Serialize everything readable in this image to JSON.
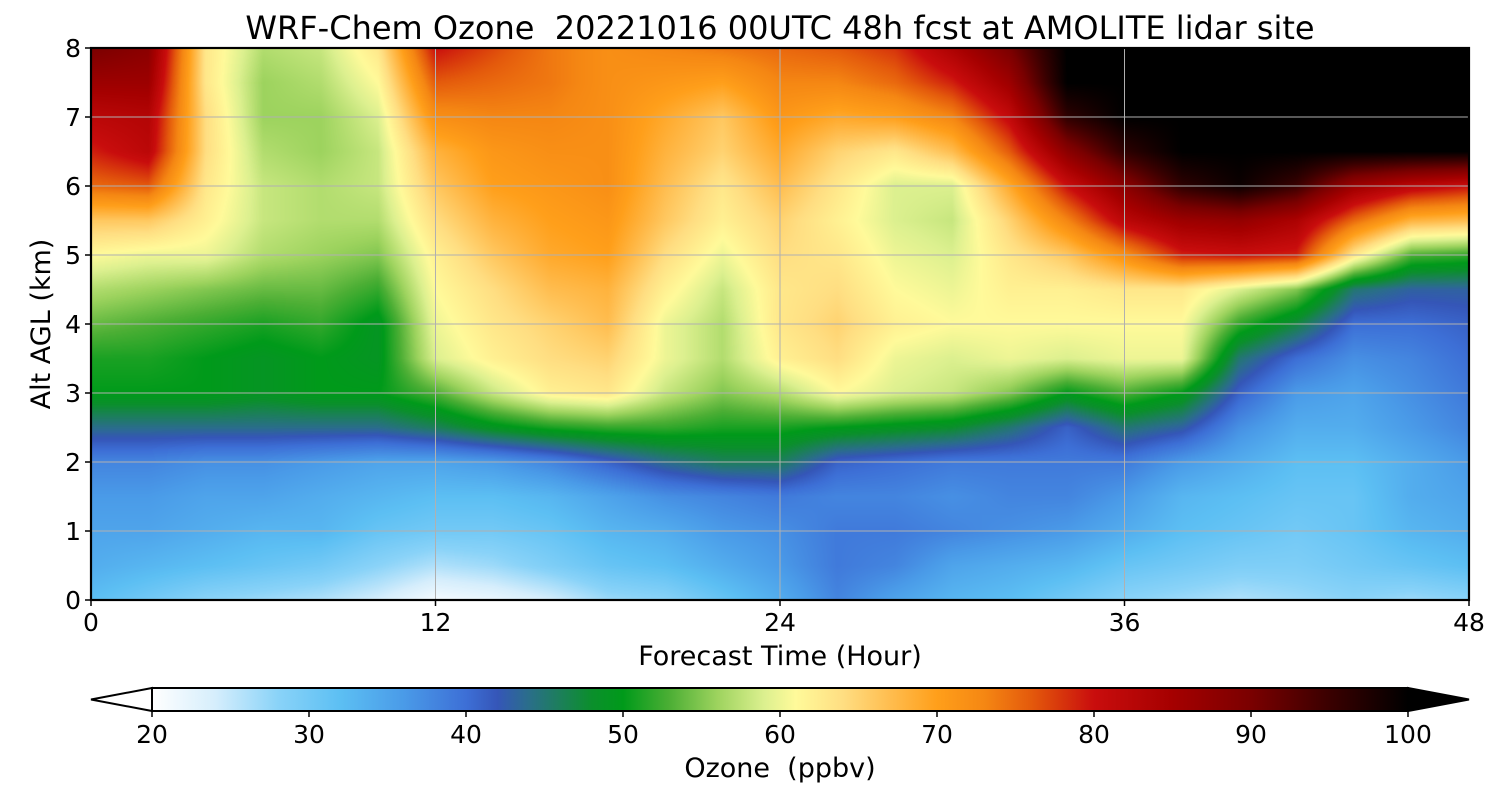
{
  "chart_data": {
    "type": "heatmap",
    "title": "WRF-Chem Ozone  20221016 00UTC 48h fcst at AMOLITE lidar site",
    "xlabel": "Forecast Time (Hour)",
    "ylabel": "Alt AGL (km)",
    "xlim": [
      0,
      48
    ],
    "ylim": [
      0,
      8
    ],
    "x_ticks": [
      "0",
      "12",
      "24",
      "36",
      "48"
    ],
    "y_ticks": [
      "0",
      "1",
      "2",
      "3",
      "4",
      "5",
      "6",
      "7",
      "8"
    ],
    "grid": true,
    "x": [
      0,
      2,
      4,
      6,
      8,
      10,
      12,
      14,
      16,
      18,
      20,
      22,
      24,
      26,
      28,
      30,
      32,
      34,
      36,
      38,
      40,
      42,
      44,
      46,
      48
    ],
    "y": [
      0,
      0.5,
      1,
      1.5,
      2,
      2.5,
      3,
      3.5,
      4,
      4.5,
      5,
      5.5,
      6,
      6.5,
      7,
      7.5,
      8
    ],
    "z": [
      [
        32,
        30,
        28,
        27,
        26,
        24,
        21,
        22,
        24,
        27,
        28,
        31,
        34,
        38,
        35,
        33,
        32,
        30,
        28,
        27,
        26,
        27,
        28,
        27,
        28
      ],
      [
        34,
        33,
        32,
        31,
        30,
        28,
        26,
        27,
        29,
        31,
        32,
        34,
        36,
        39,
        38,
        35,
        34,
        33,
        31,
        30,
        29,
        29,
        30,
        31,
        32
      ],
      [
        35,
        35,
        34,
        33,
        33,
        31,
        30,
        30,
        31,
        33,
        34,
        36,
        37,
        39,
        39,
        38,
        37,
        36,
        34,
        32,
        31,
        30,
        31,
        33,
        34
      ],
      [
        36,
        36,
        35,
        35,
        34,
        33,
        32,
        32,
        33,
        35,
        37,
        38,
        39,
        38,
        38,
        37,
        38,
        38,
        36,
        33,
        32,
        31,
        31,
        34,
        35
      ],
      [
        38,
        38,
        37,
        37,
        36,
        35,
        35,
        36,
        38,
        41,
        44,
        46,
        46,
        41,
        40,
        39,
        39,
        39,
        39,
        36,
        34,
        32,
        32,
        34,
        36
      ],
      [
        44,
        44,
        44,
        44,
        44,
        44,
        46,
        49,
        51,
        52,
        52,
        51,
        51,
        50,
        49,
        48,
        45,
        41,
        45,
        43,
        37,
        34,
        34,
        36,
        38
      ],
      [
        50,
        50,
        50,
        49,
        50,
        50,
        53,
        58,
        62,
        63,
        58,
        55,
        57,
        61,
        59,
        58,
        55,
        50,
        53,
        50,
        41,
        36,
        35,
        37,
        39
      ],
      [
        51,
        51,
        50,
        49,
        50,
        49,
        59,
        62,
        64,
        65,
        60,
        57,
        62,
        64,
        60,
        59,
        60,
        59,
        60,
        60,
        45,
        40,
        37,
        38,
        40
      ],
      [
        54,
        53,
        52,
        51,
        52,
        49,
        60,
        63,
        65,
        67,
        60,
        57,
        63,
        65,
        62,
        61,
        61,
        61,
        61,
        61,
        52,
        47,
        40,
        40,
        41
      ],
      [
        57,
        56,
        55,
        54,
        54,
        52,
        61,
        64,
        67,
        68,
        62,
        58,
        63,
        64,
        61,
        60,
        62,
        62,
        63,
        63,
        59,
        55,
        45,
        43,
        43
      ],
      [
        61,
        60,
        60,
        57,
        56,
        55,
        62,
        66,
        69,
        70,
        64,
        60,
        64,
        63,
        60,
        59,
        63,
        66,
        72,
        79,
        80,
        79,
        63,
        53,
        52
      ],
      [
        66,
        66,
        62,
        58,
        57,
        57,
        64,
        68,
        70,
        71,
        66,
        62,
        65,
        62,
        59,
        58,
        65,
        73,
        82,
        86,
        87,
        84,
        75,
        68,
        67
      ],
      [
        75,
        76,
        63,
        58,
        57,
        58,
        66,
        70,
        71,
        72,
        67,
        63,
        67,
        63,
        59,
        59,
        69,
        80,
        88,
        96,
        99,
        95,
        86,
        82,
        80
      ],
      [
        79,
        82,
        64,
        57,
        56,
        58,
        68,
        71,
        72,
        72,
        68,
        65,
        69,
        65,
        63,
        67,
        76,
        88,
        96,
        100,
        100,
        100,
        100,
        100,
        100
      ],
      [
        82,
        83,
        64,
        56,
        56,
        59,
        72,
        73,
        73,
        72,
        69,
        66,
        71,
        69,
        70,
        73,
        81,
        96,
        100,
        100,
        100,
        100,
        100,
        100,
        100
      ],
      [
        86,
        86,
        63,
        56,
        57,
        61,
        76,
        75,
        74,
        72,
        71,
        70,
        73,
        73,
        75,
        79,
        86,
        100,
        100,
        100,
        100,
        100,
        100,
        100,
        100
      ],
      [
        90,
        88,
        63,
        57,
        58,
        63,
        80,
        77,
        74,
        72,
        73,
        74,
        75,
        76,
        78,
        84,
        90,
        100,
        100,
        100,
        100,
        100,
        100,
        100,
        100
      ]
    ],
    "colorbar": {
      "label": "Ozone  (ppbv)",
      "min": 20,
      "max": 100,
      "ticks": [
        "20",
        "30",
        "40",
        "50",
        "60",
        "70",
        "80",
        "90",
        "100"
      ],
      "extend": "both",
      "stops": [
        {
          "value": 20,
          "color": "#ffffff"
        },
        {
          "value": 24,
          "color": "#d6eefc"
        },
        {
          "value": 28,
          "color": "#8ad3f8"
        },
        {
          "value": 32,
          "color": "#5cbff3"
        },
        {
          "value": 36,
          "color": "#4a9be8"
        },
        {
          "value": 40,
          "color": "#3d6fd6"
        },
        {
          "value": 42,
          "color": "#3556b8"
        },
        {
          "value": 44,
          "color": "#2a6e8a"
        },
        {
          "value": 46,
          "color": "#1c7f5a"
        },
        {
          "value": 48,
          "color": "#0b8f2c"
        },
        {
          "value": 50,
          "color": "#009a1a"
        },
        {
          "value": 53,
          "color": "#4daf35"
        },
        {
          "value": 56,
          "color": "#9dd35e"
        },
        {
          "value": 59,
          "color": "#dcf08f"
        },
        {
          "value": 61,
          "color": "#fffa9a"
        },
        {
          "value": 64,
          "color": "#ffde82"
        },
        {
          "value": 67,
          "color": "#ffbd4f"
        },
        {
          "value": 70,
          "color": "#ff9f1a"
        },
        {
          "value": 73,
          "color": "#f58713"
        },
        {
          "value": 76,
          "color": "#e45a0c"
        },
        {
          "value": 80,
          "color": "#c90d0d"
        },
        {
          "value": 85,
          "color": "#a50000"
        },
        {
          "value": 90,
          "color": "#7a0000"
        },
        {
          "value": 95,
          "color": "#3a0000"
        },
        {
          "value": 100,
          "color": "#000000"
        }
      ]
    }
  }
}
